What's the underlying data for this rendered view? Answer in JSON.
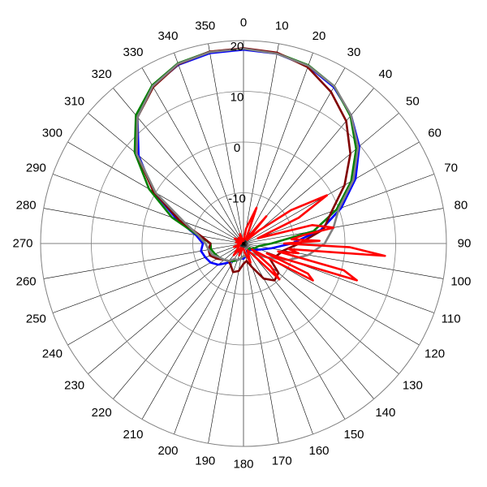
{
  "chart_data": {
    "type": "polar-line",
    "angle_unit": "degrees",
    "angle_direction": "clockwise",
    "angle_zero": "top",
    "angle_ticks": [
      0,
      10,
      20,
      30,
      40,
      50,
      60,
      70,
      80,
      90,
      100,
      110,
      120,
      130,
      140,
      150,
      160,
      170,
      180,
      190,
      200,
      210,
      220,
      230,
      240,
      250,
      260,
      270,
      280,
      290,
      300,
      310,
      320,
      330,
      340,
      350
    ],
    "angle_tick_labels": [
      "0",
      "10",
      "20",
      "30",
      "40",
      "50",
      "60",
      "70",
      "80",
      "90",
      "100",
      "110",
      "120",
      "130",
      "140",
      "150",
      "160",
      "170",
      "180",
      "190",
      "200",
      "210",
      "220",
      "230",
      "240",
      "250",
      "260",
      "270",
      "280",
      "290",
      "300",
      "310",
      "320",
      "330",
      "340",
      "350"
    ],
    "radial_range": [
      -20,
      20
    ],
    "radial_ticks": [
      -20,
      -10,
      0,
      10,
      20
    ],
    "radial_tick_labels": [
      "",
      "-10",
      "0",
      "10",
      "20"
    ],
    "grid": true,
    "legend": "none",
    "series": [
      {
        "color": "#0000ff",
        "theta": [
          0,
          10,
          20,
          30,
          40,
          50,
          60,
          70,
          80,
          90,
          100,
          110,
          120,
          130,
          140,
          150,
          160,
          170,
          180,
          190,
          200,
          210,
          220,
          230,
          240,
          250,
          260,
          270,
          280,
          290,
          300,
          310,
          320,
          330,
          340,
          350
        ],
        "r": [
          18.2,
          18.0,
          17.2,
          15.6,
          13.0,
          9.8,
          5.5,
          0.5,
          -4.5,
          -10.5,
          -14.5,
          -16.5,
          -17.5,
          -18.0,
          -18.5,
          -18.5,
          -18.0,
          -17.5,
          -17.0,
          -17.0,
          -16.5,
          -16.0,
          -15.0,
          -13.5,
          -12.5,
          -12.0,
          -11.5,
          -12.0,
          -10.5,
          -6.0,
          0.5,
          7.0,
          12.5,
          15.8,
          17.5,
          18.1
        ]
      },
      {
        "color": "#008000",
        "theta": [
          0,
          10,
          20,
          30,
          40,
          50,
          60,
          70,
          80,
          90,
          100,
          110,
          120,
          130,
          140,
          150,
          160,
          170,
          180,
          190,
          200,
          210,
          220,
          230,
          240,
          250,
          260,
          270,
          280,
          290,
          300,
          310,
          320,
          330,
          340,
          350
        ],
        "r": [
          18.4,
          18.1,
          17.4,
          15.8,
          12.8,
          9.0,
          4.5,
          -0.5,
          -6.0,
          -14.5,
          -17.0,
          -17.5,
          -18.0,
          -18.5,
          -18.5,
          -18.0,
          -18.0,
          -17.5,
          -17.5,
          -17.0,
          -16.5,
          -16.0,
          -15.5,
          -15.0,
          -14.5,
          -14.0,
          -13.5,
          -13.5,
          -11.0,
          -5.0,
          1.5,
          8.0,
          13.0,
          16.0,
          17.8,
          18.4
        ]
      },
      {
        "color": "#800000",
        "theta": [
          0,
          10,
          20,
          30,
          40,
          50,
          60,
          70,
          80,
          90,
          100,
          110,
          120,
          130,
          140,
          150,
          160,
          170,
          180,
          190,
          200,
          210,
          220,
          230,
          240,
          250,
          260,
          270,
          280,
          290,
          300,
          310,
          320,
          330,
          340,
          350
        ],
        "r": [
          18.5,
          18.2,
          17.0,
          14.5,
          11.5,
          7.5,
          3.0,
          -1.5,
          -4.0,
          -9.0,
          -12.0,
          -13.0,
          -14.0,
          -11.0,
          -10.5,
          -12.0,
          -15.0,
          -16.5,
          -16.0,
          -14.5,
          -14.0,
          -15.0,
          -15.5,
          -15.0,
          -14.0,
          -13.0,
          -13.0,
          -13.5,
          -11.5,
          -6.5,
          0.5,
          7.5,
          12.5,
          15.6,
          17.6,
          18.4
        ]
      },
      {
        "color": "#808080",
        "theta": [
          0,
          10,
          20,
          30,
          40,
          50,
          60,
          70,
          80,
          90,
          100,
          110,
          120,
          130,
          140,
          150,
          160,
          170,
          180,
          190,
          200,
          210,
          220,
          230,
          240,
          250,
          260,
          270,
          280,
          290,
          300,
          310,
          320,
          330,
          340,
          350
        ],
        "r": [
          18.4,
          18.0,
          17.3,
          15.8,
          13.0,
          9.5,
          5.0,
          0.0,
          -2.0,
          -4.0,
          -7.0,
          -10.5,
          -14.5,
          -16.5,
          -17.5,
          -18.0,
          -18.0,
          -17.5,
          -17.5,
          -17.0,
          -16.5,
          -16.5,
          -15.5,
          -15.0,
          -14.5,
          -13.5,
          -13.0,
          -12.5,
          -11.0,
          -7.5,
          0.0,
          7.5,
          12.5,
          15.8,
          17.7,
          18.3
        ]
      },
      {
        "color": "#ff0000",
        "theta": [
          0,
          10,
          20,
          30,
          40,
          45,
          50,
          55,
          60,
          65,
          70,
          75,
          80,
          82,
          85,
          88,
          90,
          92,
          95,
          97,
          100,
          103,
          105,
          108,
          110,
          113,
          115,
          118,
          120,
          125,
          130,
          135,
          140,
          150,
          160,
          170,
          180,
          190,
          200,
          210,
          220,
          230,
          240,
          250,
          260,
          270,
          280,
          290,
          300,
          310,
          320,
          330,
          340,
          350
        ],
        "r": [
          -19.5,
          -17.0,
          -12.5,
          -19.0,
          -13.0,
          -19.0,
          -16.0,
          -8.5,
          -1.0,
          -8.0,
          -17.0,
          -6.0,
          -2.0,
          -8.0,
          -10.5,
          -5.0,
          -12.0,
          1.0,
          8.0,
          -11.0,
          -9.0,
          -13.0,
          0.5,
          3.5,
          -10.0,
          -15.0,
          -6.0,
          -4.5,
          -14.0,
          -18.0,
          -13.0,
          -10.0,
          -17.0,
          -18.5,
          -16.0,
          -18.0,
          -19.0,
          -19.0,
          -17.5,
          -19.0,
          -17.0,
          -18.5,
          -19.0,
          -18.0,
          -19.0,
          -19.5,
          -18.5,
          -19.0,
          -18.0,
          -19.5,
          -18.5,
          -19.0,
          -18.0,
          -19.5
        ]
      }
    ]
  }
}
